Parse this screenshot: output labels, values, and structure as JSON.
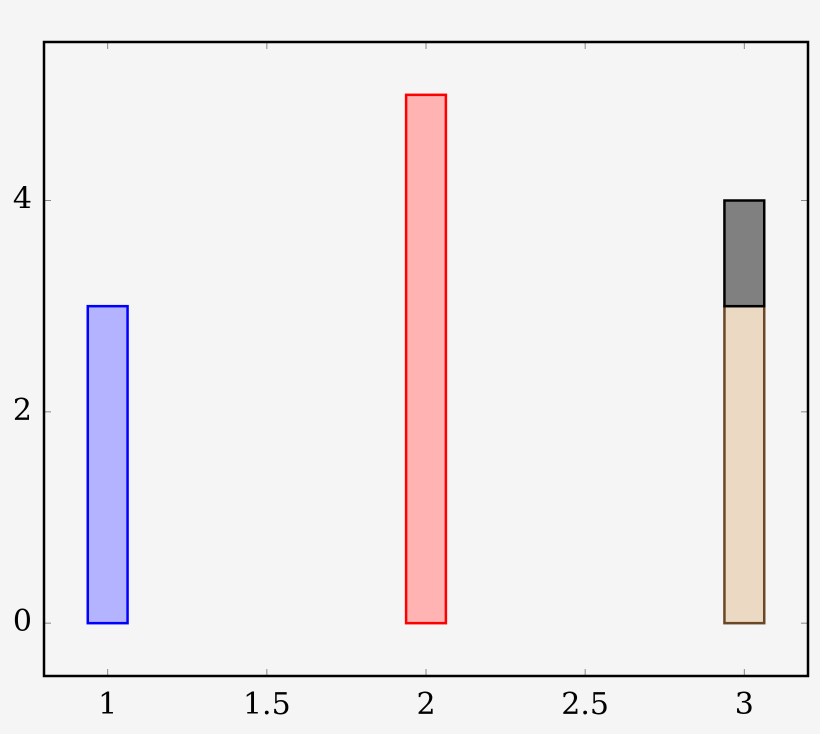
{
  "chart_data": {
    "type": "stacked-bar",
    "x": [
      1,
      2,
      3
    ],
    "series": [
      {
        "color": "#0000ff",
        "fill": "#b3b3ff",
        "values": [
          3,
          0,
          0
        ]
      },
      {
        "color": "#ff0000",
        "fill": "#ffb3b3",
        "values": [
          null,
          5,
          null
        ]
      },
      {
        "color": "#6b4726",
        "fill": "#ebd9c3",
        "values": [
          null,
          null,
          3
        ]
      },
      {
        "color": "#000000",
        "fill": "#808080",
        "values": [
          null,
          null,
          1
        ]
      }
    ],
    "bar_width": 0.125,
    "xlim": [
      0.8,
      3.2
    ],
    "xticks": [
      1,
      1.5,
      2,
      2.5,
      3
    ],
    "ylim": [
      -0.5,
      5.5
    ],
    "yticks": [
      0,
      2,
      4
    ]
  }
}
